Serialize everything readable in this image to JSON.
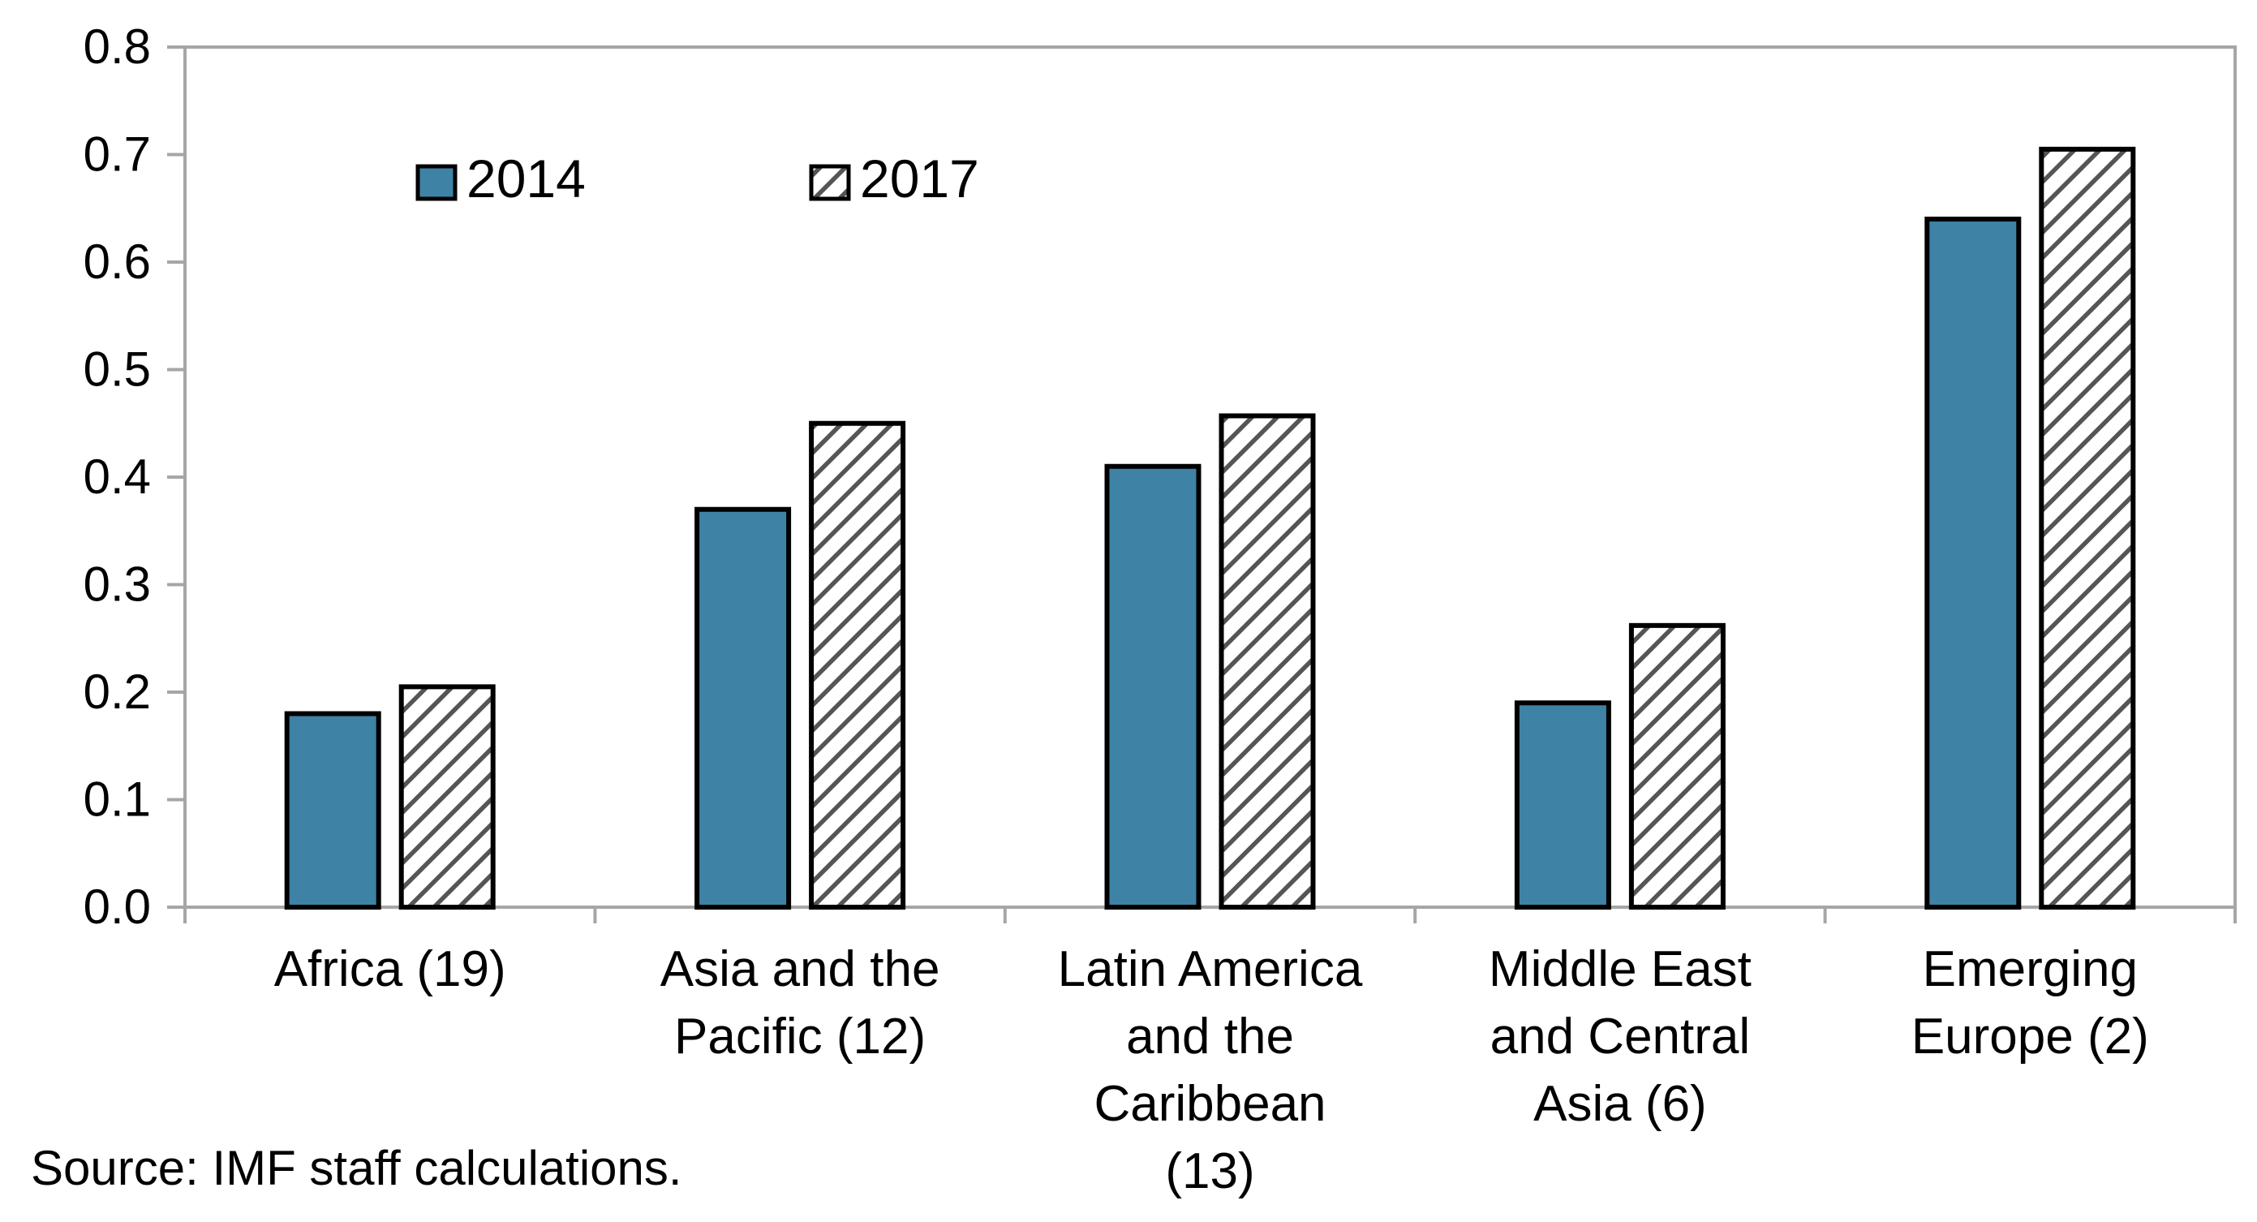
{
  "chart_data": {
    "type": "bar",
    "title": "",
    "xlabel": "",
    "ylabel": "",
    "ylim": [
      0,
      0.8
    ],
    "yticks": [
      "0.0",
      "0.1",
      "0.2",
      "0.3",
      "0.4",
      "0.5",
      "0.6",
      "0.7",
      "0.8"
    ],
    "grid": false,
    "legend_position": "top-left",
    "categories": [
      [
        "Africa (19)"
      ],
      [
        "Asia and the",
        "Pacific (12)"
      ],
      [
        "Latin America",
        "and the",
        "Caribbean",
        "(13)"
      ],
      [
        "Middle East",
        "and Central",
        "Asia (6)"
      ],
      [
        "Emerging",
        "Europe (2)"
      ]
    ],
    "series": [
      {
        "name": "2014",
        "style": "solid",
        "color": "#3e82a6",
        "values": [
          0.18,
          0.37,
          0.41,
          0.19,
          0.64
        ]
      },
      {
        "name": "2017",
        "style": "hatched",
        "color": "#ffffff",
        "values": [
          0.205,
          0.45,
          0.457,
          0.262,
          0.705
        ]
      }
    ]
  },
  "colors": {
    "axis": "#a6a6a6",
    "bar_outline": "#000000",
    "hatch": "#555555"
  },
  "source_note": "Source: IMF staff calculations."
}
